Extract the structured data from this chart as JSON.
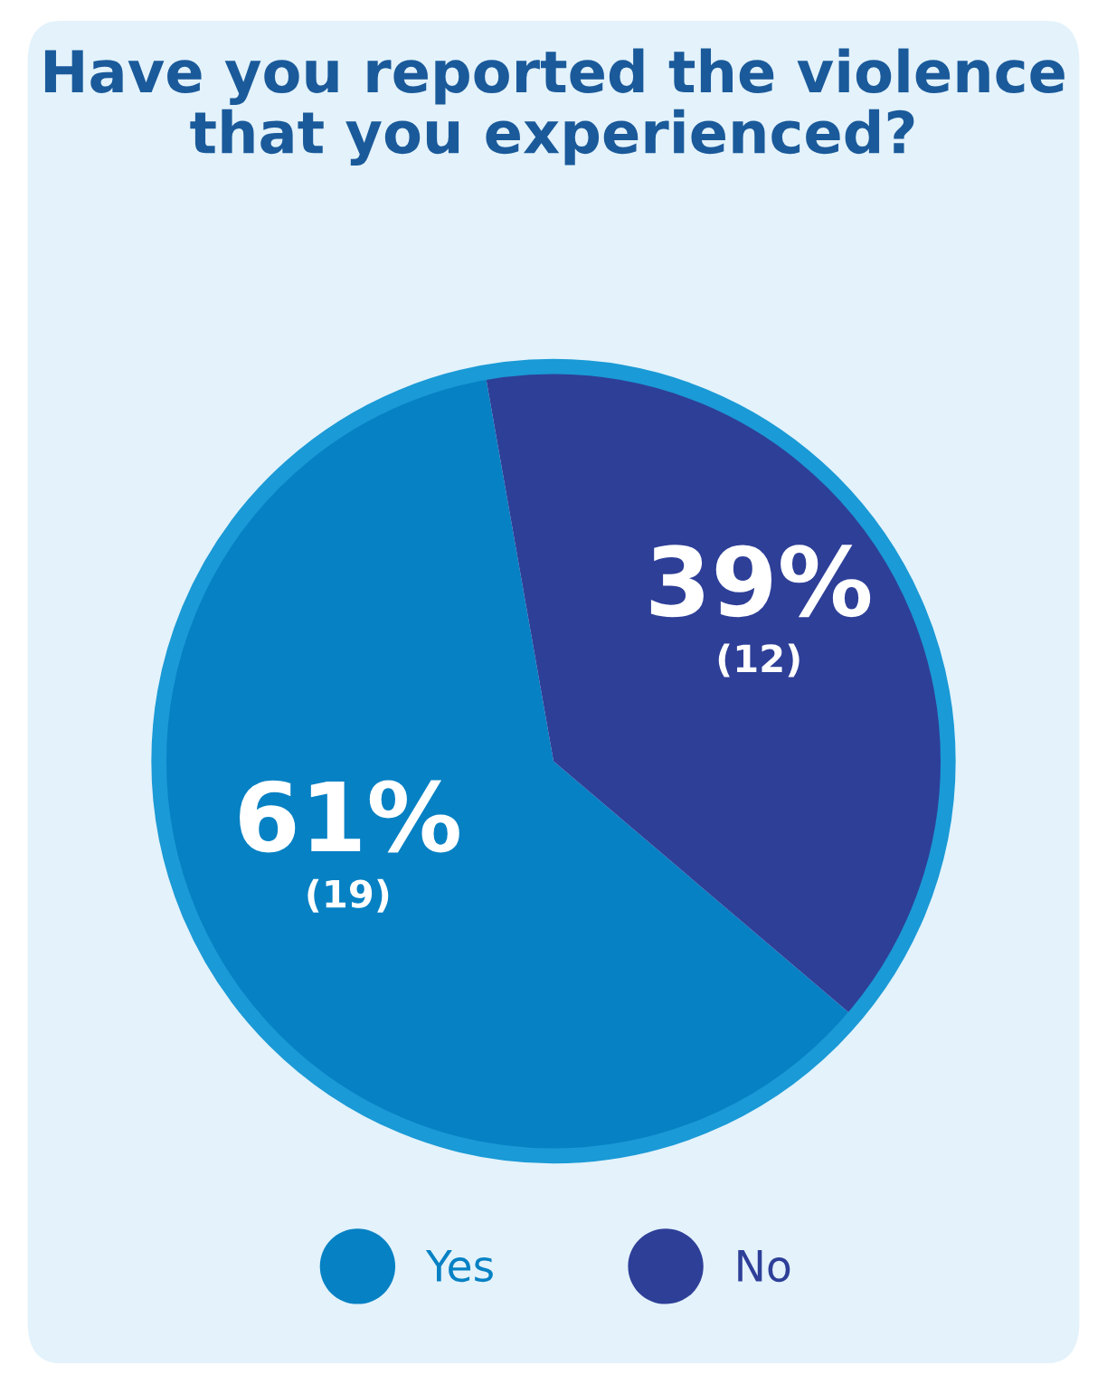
{
  "chart_data": {
    "type": "pie",
    "title": "Have you reported the violence that you experienced?",
    "categories": [
      "Yes",
      "No"
    ],
    "values": [
      61,
      39
    ],
    "colors": [
      "#0681c4",
      "#2e3f98"
    ],
    "value_labels": [
      "61%\n(19)",
      "39%\n(12)"
    ],
    "legend": "bottom"
  }
}
